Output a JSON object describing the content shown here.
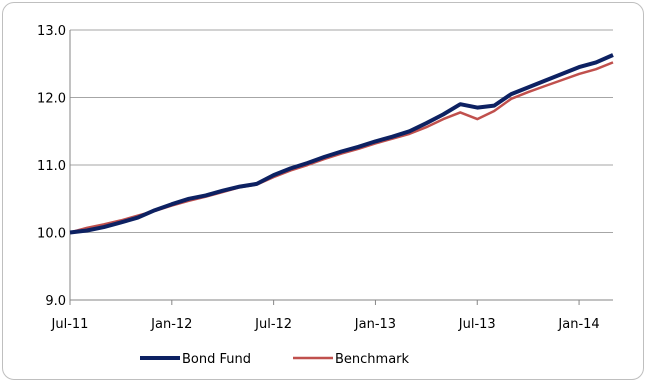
{
  "chart_data": {
    "type": "line",
    "title": "",
    "xlabel": "",
    "ylabel": "",
    "ylim": [
      9.0,
      13.0
    ],
    "y_ticks": [
      "9.0",
      "10.0",
      "11.0",
      "12.0",
      "13.0"
    ],
    "x_ticks": [
      "Jul-11",
      "Jan-12",
      "Jul-12",
      "Jan-13",
      "Jul-13",
      "Jan-14"
    ],
    "grid": "horizontal",
    "legend_position": "bottom",
    "x": [
      "Jul-11",
      "Aug-11",
      "Sep-11",
      "Oct-11",
      "Nov-11",
      "Dec-11",
      "Jan-12",
      "Feb-12",
      "Mar-12",
      "Apr-12",
      "May-12",
      "Jun-12",
      "Jul-12",
      "Aug-12",
      "Sep-12",
      "Oct-12",
      "Nov-12",
      "Dec-12",
      "Jan-13",
      "Feb-13",
      "Mar-13",
      "Apr-13",
      "May-13",
      "Jun-13",
      "Jul-13",
      "Aug-13",
      "Sep-13",
      "Oct-13",
      "Nov-13",
      "Dec-13",
      "Jan-14",
      "Feb-14",
      "Mar-14"
    ],
    "series": [
      {
        "name": "Bond Fund",
        "color": "#0d2162",
        "values": [
          10.0,
          10.03,
          10.08,
          10.15,
          10.22,
          10.33,
          10.42,
          10.5,
          10.55,
          10.62,
          10.68,
          10.72,
          10.85,
          10.95,
          11.03,
          11.12,
          11.2,
          11.27,
          11.35,
          11.42,
          11.5,
          11.62,
          11.75,
          11.9,
          11.85,
          11.88,
          12.05,
          12.15,
          12.25,
          12.35,
          12.45,
          12.52,
          12.63
        ]
      },
      {
        "name": "Benchmark",
        "color": "#c0504d",
        "values": [
          10.0,
          10.07,
          10.12,
          10.18,
          10.25,
          10.32,
          10.4,
          10.47,
          10.53,
          10.6,
          10.67,
          10.71,
          10.82,
          10.92,
          11.0,
          11.09,
          11.17,
          11.24,
          11.32,
          11.39,
          11.46,
          11.56,
          11.68,
          11.78,
          11.68,
          11.8,
          11.98,
          12.08,
          12.17,
          12.26,
          12.35,
          12.42,
          12.52
        ]
      }
    ]
  }
}
